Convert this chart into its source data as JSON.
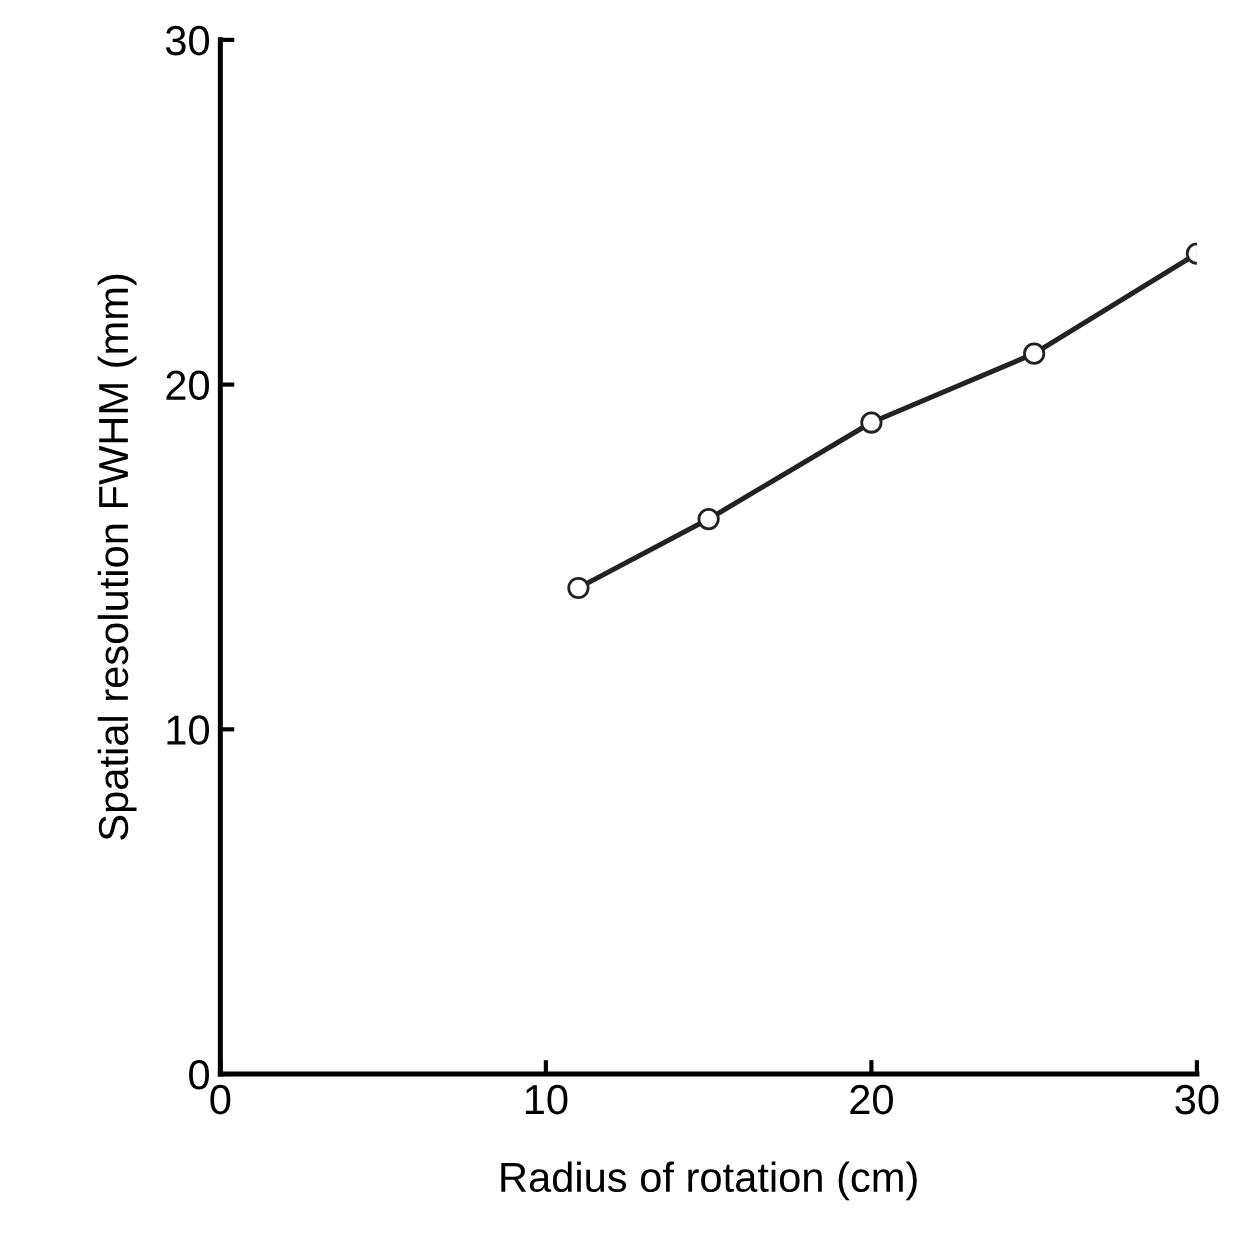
{
  "chart_data": {
    "type": "line",
    "xlabel": "Radius of rotation (cm)",
    "ylabel": "Spatial resolution FWHM (mm)",
    "x": [
      11,
      15,
      20,
      25,
      30
    ],
    "series": [
      {
        "color": "#222222",
        "values": [
          14.1,
          16.1,
          18.9,
          20.9,
          23.8
        ]
      }
    ],
    "xlim": [
      0,
      30
    ],
    "ylim": [
      0,
      30
    ],
    "xticks": [
      0,
      10,
      20,
      30
    ],
    "yticks": [
      0,
      10,
      20,
      30
    ],
    "marker": "circle",
    "line_style": "solid",
    "grid": false,
    "legend": false
  }
}
